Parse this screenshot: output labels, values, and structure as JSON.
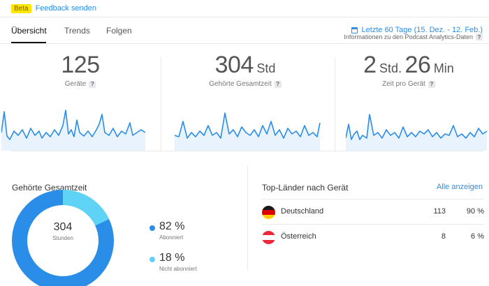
{
  "topbar": {
    "badge": "Beta",
    "feedback_link": "Feedback senden"
  },
  "tabs": [
    {
      "label": "Übersicht",
      "active": true
    },
    {
      "label": "Trends",
      "active": false
    },
    {
      "label": "Folgen",
      "active": false
    }
  ],
  "date_range": {
    "icon": "calendar-icon",
    "label": "Letzte 60 Tage (15. Dez. - 12. Feb.)"
  },
  "info": {
    "label": "Informationen zu den Podcast Analytics-Daten",
    "icon": "help-icon"
  },
  "metrics": [
    {
      "value": "125",
      "label": "Geräte"
    },
    {
      "value": "304",
      "unit": "Std",
      "label": "Gehörte Gesamtzeit"
    },
    {
      "value_hours": "2",
      "unit_hours": "Std.",
      "value_minutes": "26",
      "unit_minutes": "Min",
      "label": "Zeit pro Gerät"
    }
  ],
  "listening": {
    "title": "Gehörte Gesamtzeit",
    "center_value": "304",
    "center_label": "Stunden",
    "segments": [
      {
        "percent_label": "82 %",
        "label": "Abonniert",
        "share": 0.82,
        "color": "#2a8de8"
      },
      {
        "percent_label": "18 %",
        "label": "Nicht abonniert",
        "share": 0.18,
        "color": "#5fd3f5"
      }
    ]
  },
  "countries": {
    "title": "Top-Länder nach Gerät",
    "show_all": "Alle anzeigen",
    "rows": [
      {
        "name": "Deutschland",
        "count": "113",
        "percent": "90 %",
        "flag": "flag-germany-icon"
      },
      {
        "name": "Österreich",
        "count": "8",
        "percent": "6 %",
        "flag": "flag-austria-icon"
      }
    ]
  },
  "colors": {
    "accent": "#2a8de8",
    "accent_light": "#5fd3f5",
    "spark_fill": "#e8f3fd"
  }
}
